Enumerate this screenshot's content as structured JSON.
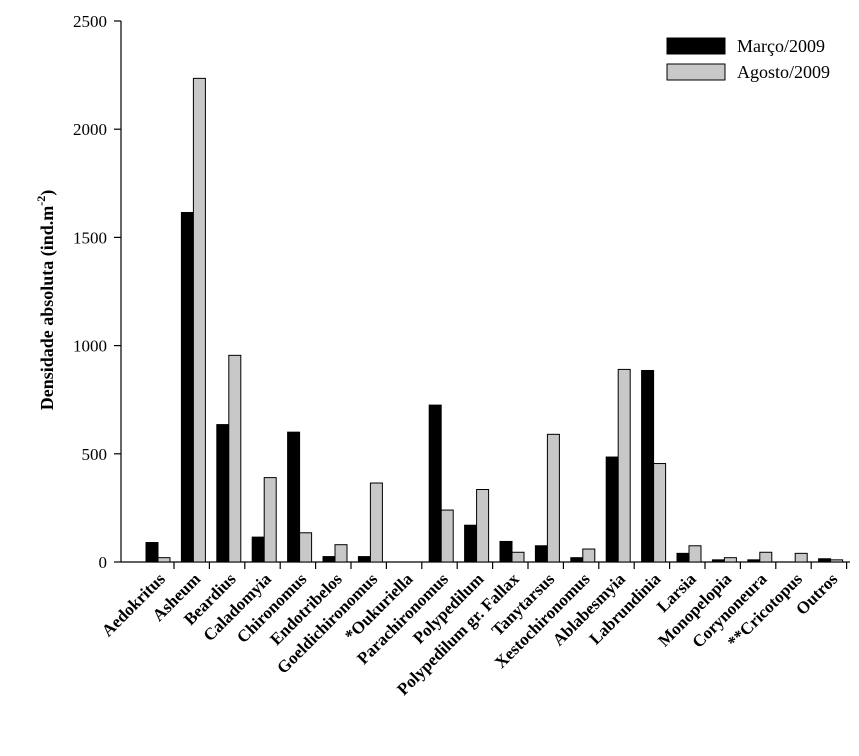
{
  "chart_data": {
    "type": "bar",
    "ylabel": "Densidade absoluta (ind.m",
    "ylabel_sup": "-2",
    "ylabel_suffix": ")",
    "xlabel": "",
    "ylim": [
      0,
      2500
    ],
    "yticks": [
      "0",
      "500",
      "1000",
      "1500",
      "2000",
      "2500"
    ],
    "legend_position": "top-right",
    "categories": [
      "Aedokritus",
      "Asheum",
      "Beardius",
      "Caladomyia",
      "Chironomus",
      "Endotribelos",
      "Goeldichironomus",
      "*Oukuriella",
      "Parachironomus",
      "Polypedilum",
      "Polypedilum gr. Fallax",
      "Tanytarsus",
      "Xestochironomus",
      "Ablabesmyia",
      "Labrundinia",
      "Larsia",
      "Monopelopia",
      "Corynoneura",
      "**Cricotopus",
      "Outros"
    ],
    "series": [
      {
        "name": "Março/2009",
        "color": "#000000",
        "values": [
          90,
          1615,
          635,
          115,
          600,
          25,
          25,
          0,
          725,
          170,
          95,
          75,
          20,
          485,
          885,
          40,
          10,
          10,
          0,
          15
        ]
      },
      {
        "name": "Agosto/2009",
        "color": "#c8c8c8",
        "values": [
          20,
          2235,
          955,
          390,
          135,
          80,
          365,
          0,
          240,
          335,
          45,
          590,
          60,
          890,
          455,
          75,
          20,
          45,
          40,
          10
        ]
      }
    ]
  }
}
